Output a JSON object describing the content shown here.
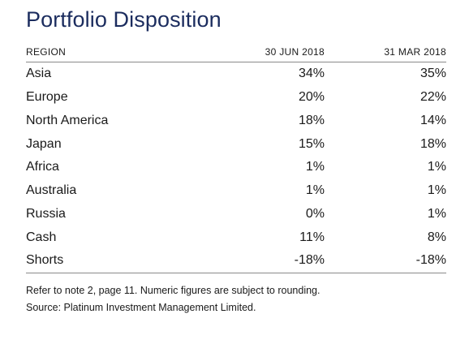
{
  "title": "Portfolio Disposition",
  "columns": {
    "region": "REGION",
    "col_a": "30 JUN 2018",
    "col_b": "31 MAR 2018"
  },
  "rows": [
    {
      "region": "Asia",
      "a": "34%",
      "b": "35%"
    },
    {
      "region": "Europe",
      "a": "20%",
      "b": "22%"
    },
    {
      "region": "North America",
      "a": "18%",
      "b": "14%"
    },
    {
      "region": "Japan",
      "a": "15%",
      "b": "18%"
    },
    {
      "region": "Africa",
      "a": "1%",
      "b": "1%"
    },
    {
      "region": "Australia",
      "a": "1%",
      "b": "1%"
    },
    {
      "region": "Russia",
      "a": "0%",
      "b": "1%"
    },
    {
      "region": "Cash",
      "a": "11%",
      "b": "8%"
    },
    {
      "region": "Shorts",
      "a": "-18%",
      "b": "-18%"
    }
  ],
  "notes": {
    "line1": "Refer to note 2, page 11. Numeric figures are subject to rounding.",
    "line2": "Source: Platinum Investment Management Limited."
  }
}
